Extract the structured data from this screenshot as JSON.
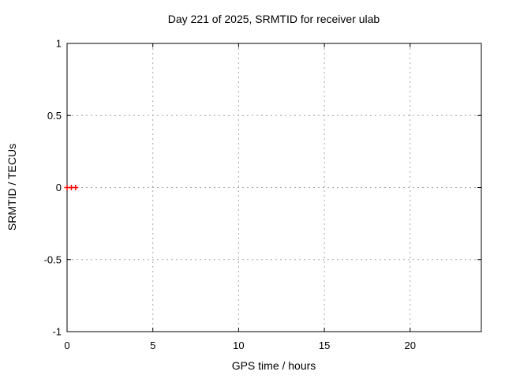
{
  "chart_data": {
    "type": "scatter",
    "title": "Day 221 of 2025, SRMTID for receiver ulab",
    "xlabel": "GPS time / hours",
    "ylabel": "SRMTID / TECUs",
    "xlim": [
      0,
      24.15
    ],
    "ylim": [
      -1,
      1
    ],
    "xticks": [
      0,
      5,
      10,
      15,
      20
    ],
    "yticks": [
      -1,
      -0.5,
      0,
      0.5,
      1
    ],
    "xtick_labels": [
      "0",
      "5",
      "10",
      "15",
      "20"
    ],
    "ytick_labels": [
      "-1",
      "-0.5",
      "0",
      "0.5",
      "1"
    ],
    "grid": true,
    "legend": "none",
    "series": [
      {
        "name": "SRMTID",
        "marker": "plus",
        "color": "#ff0000",
        "x": [
          0.0,
          0.25,
          0.5
        ],
        "y": [
          0.0,
          0.0,
          0.0
        ]
      }
    ],
    "colors": {
      "background": "#ffffff",
      "axis": "#000000",
      "grid": "#a6a6a6",
      "text": "#000000"
    }
  }
}
